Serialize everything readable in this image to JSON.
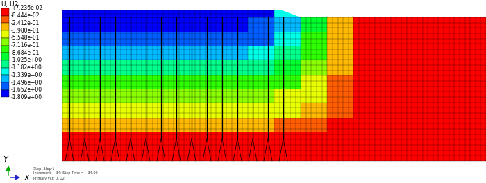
{
  "chart_data": {
    "type": "contour",
    "title": "U, U2",
    "levels": [
      {
        "value": 0.07236,
        "label": "+7.236e-02"
      },
      {
        "value": -0.08444,
        "label": "-8.444e-02"
      },
      {
        "value": -0.2412,
        "label": "-2.412e-01"
      },
      {
        "value": -0.398,
        "label": "-3.980e-01"
      },
      {
        "value": -0.5548,
        "label": "-5.548e-01"
      },
      {
        "value": -0.7116,
        "label": "-7.116e-01"
      },
      {
        "value": -0.8684,
        "label": "-8.684e-01"
      },
      {
        "value": -1.025,
        "label": "-1.025e+00"
      },
      {
        "value": -1.182,
        "label": "-1.182e+00"
      },
      {
        "value": -1.339,
        "label": "-1.339e+00"
      },
      {
        "value": -1.496,
        "label": "-1.496e+00"
      },
      {
        "value": -1.652,
        "label": "-1.652e+00"
      },
      {
        "value": -1.809,
        "label": "-1.809e+00"
      }
    ],
    "colors": [
      "#ff0000",
      "#ff5d00",
      "#ffb900",
      "#e8ff00",
      "#8bff00",
      "#2eff00",
      "#00ff2e",
      "#00ff8b",
      "#00ffe8",
      "#00b9ff",
      "#005dff",
      "#0000ff"
    ],
    "cells": [
      [
        -1.76,
        -1.76,
        -1.76,
        -1.76,
        -1.76,
        -1.76,
        -1.76,
        -1.72,
        -1.2,
        null,
        null,
        null,
        null,
        null,
        null,
        null
      ],
      [
        -1.72,
        -1.72,
        -1.72,
        -1.72,
        -1.72,
        -1.72,
        -1.7,
        -1.6,
        -1.35,
        -0.9,
        -0.3,
        0.02,
        0.02,
        0.02,
        0.02,
        0.02
      ],
      [
        -1.6,
        -1.6,
        -1.6,
        -1.6,
        -1.6,
        -1.6,
        -1.58,
        -1.5,
        -1.25,
        -0.85,
        -0.3,
        -0.03,
        0.0,
        0.0,
        0.0,
        0.0
      ],
      [
        -1.36,
        -1.36,
        -1.36,
        -1.36,
        -1.36,
        -1.36,
        -1.34,
        -1.28,
        -1.1,
        -0.75,
        -0.28,
        -0.04,
        0.0,
        0.0,
        0.0,
        0.0
      ],
      [
        -1.1,
        -1.1,
        -1.1,
        -1.1,
        -1.1,
        -1.1,
        -1.1,
        -1.05,
        -0.92,
        -0.65,
        -0.25,
        -0.04,
        0.0,
        0.0,
        0.0,
        0.0
      ],
      [
        -0.85,
        -0.85,
        -0.85,
        -0.85,
        -0.85,
        -0.85,
        -0.85,
        -0.8,
        -0.72,
        -0.52,
        -0.2,
        -0.03,
        0.0,
        0.0,
        0.0,
        0.0
      ],
      [
        -0.62,
        -0.62,
        -0.62,
        -0.62,
        -0.62,
        -0.62,
        -0.62,
        -0.6,
        -0.55,
        -0.42,
        -0.15,
        -0.02,
        0.0,
        0.0,
        0.0,
        0.0
      ],
      [
        -0.45,
        -0.45,
        -0.45,
        -0.45,
        -0.45,
        -0.45,
        -0.45,
        -0.44,
        -0.4,
        -0.3,
        -0.1,
        0.0,
        0.0,
        0.0,
        0.0,
        0.0
      ],
      [
        -0.26,
        -0.26,
        -0.26,
        -0.26,
        -0.26,
        -0.26,
        -0.26,
        -0.25,
        -0.22,
        -0.17,
        -0.05,
        0.0,
        0.0,
        0.0,
        0.0,
        0.0
      ],
      [
        -0.06,
        -0.06,
        -0.06,
        -0.06,
        -0.06,
        -0.06,
        -0.06,
        -0.06,
        -0.05,
        -0.03,
        0.0,
        0.0,
        0.0,
        0.0,
        0.0,
        0.0
      ],
      [
        0.0,
        0.0,
        0.0,
        0.0,
        0.0,
        0.0,
        0.0,
        0.0,
        0.0,
        0.0,
        0.0,
        0.0,
        0.0,
        0.0,
        0.0,
        0.0
      ]
    ],
    "axis_labels": {
      "x": "X",
      "y": "Y"
    },
    "footer": [
      "Step: Step-1",
      "Increment     34: Step Time =    34.00",
      "Primary Var: U, U2"
    ]
  }
}
